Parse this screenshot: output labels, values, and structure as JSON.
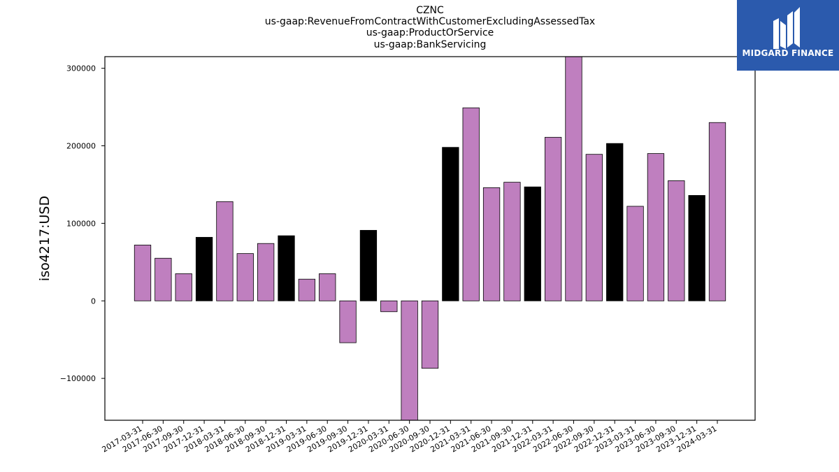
{
  "chart_data": {
    "type": "bar",
    "title_lines": [
      "CZNC",
      "us-gaap:RevenueFromContractWithCustomerExcludingAssessedTax",
      "us-gaap:ProductOrService",
      "us-gaap:BankServicing"
    ],
    "ylabel": "iso4217:USD",
    "xlabel": "",
    "ylim": [
      -154000,
      315000
    ],
    "yticks": [
      -100000,
      0,
      100000,
      200000,
      300000
    ],
    "ytick_labels": [
      "−100000",
      "0",
      "100000",
      "200000",
      "300000"
    ],
    "grid": false,
    "categories": [
      "2017-03-31",
      "2017-06-30",
      "2017-09-30",
      "2017-12-31",
      "2018-03-31",
      "2018-06-30",
      "2018-09-30",
      "2018-12-31",
      "2019-03-31",
      "2019-06-30",
      "2019-09-30",
      "2019-12-31",
      "2020-03-31",
      "2020-06-30",
      "2020-09-30",
      "2020-12-31",
      "2021-03-31",
      "2021-06-30",
      "2021-09-30",
      "2021-12-31",
      "2022-03-31",
      "2022-06-30",
      "2022-09-30",
      "2022-12-31",
      "2023-03-31",
      "2023-06-30",
      "2023-09-30",
      "2023-12-31",
      "2024-03-31"
    ],
    "values": [
      72000,
      55000,
      35000,
      82000,
      128000,
      61000,
      74000,
      84000,
      28000,
      35000,
      -54000,
      91000,
      -14000,
      -160000,
      -87000,
      198000,
      249000,
      146000,
      153000,
      147000,
      211000,
      320000,
      189000,
      203000,
      122000,
      190000,
      155000,
      136000,
      230000
    ],
    "bar_colors": [
      "#bf7fbf",
      "#bf7fbf",
      "#bf7fbf",
      "#000000",
      "#bf7fbf",
      "#bf7fbf",
      "#bf7fbf",
      "#000000",
      "#bf7fbf",
      "#bf7fbf",
      "#bf7fbf",
      "#000000",
      "#bf7fbf",
      "#bf7fbf",
      "#bf7fbf",
      "#000000",
      "#bf7fbf",
      "#bf7fbf",
      "#bf7fbf",
      "#000000",
      "#bf7fbf",
      "#bf7fbf",
      "#bf7fbf",
      "#000000",
      "#bf7fbf",
      "#bf7fbf",
      "#bf7fbf",
      "#000000",
      "#bf7fbf"
    ]
  },
  "logo": {
    "text": "MIDGARD FINANCE",
    "background": "#2b5aad",
    "icon": "stylized-m-logo-icon"
  }
}
